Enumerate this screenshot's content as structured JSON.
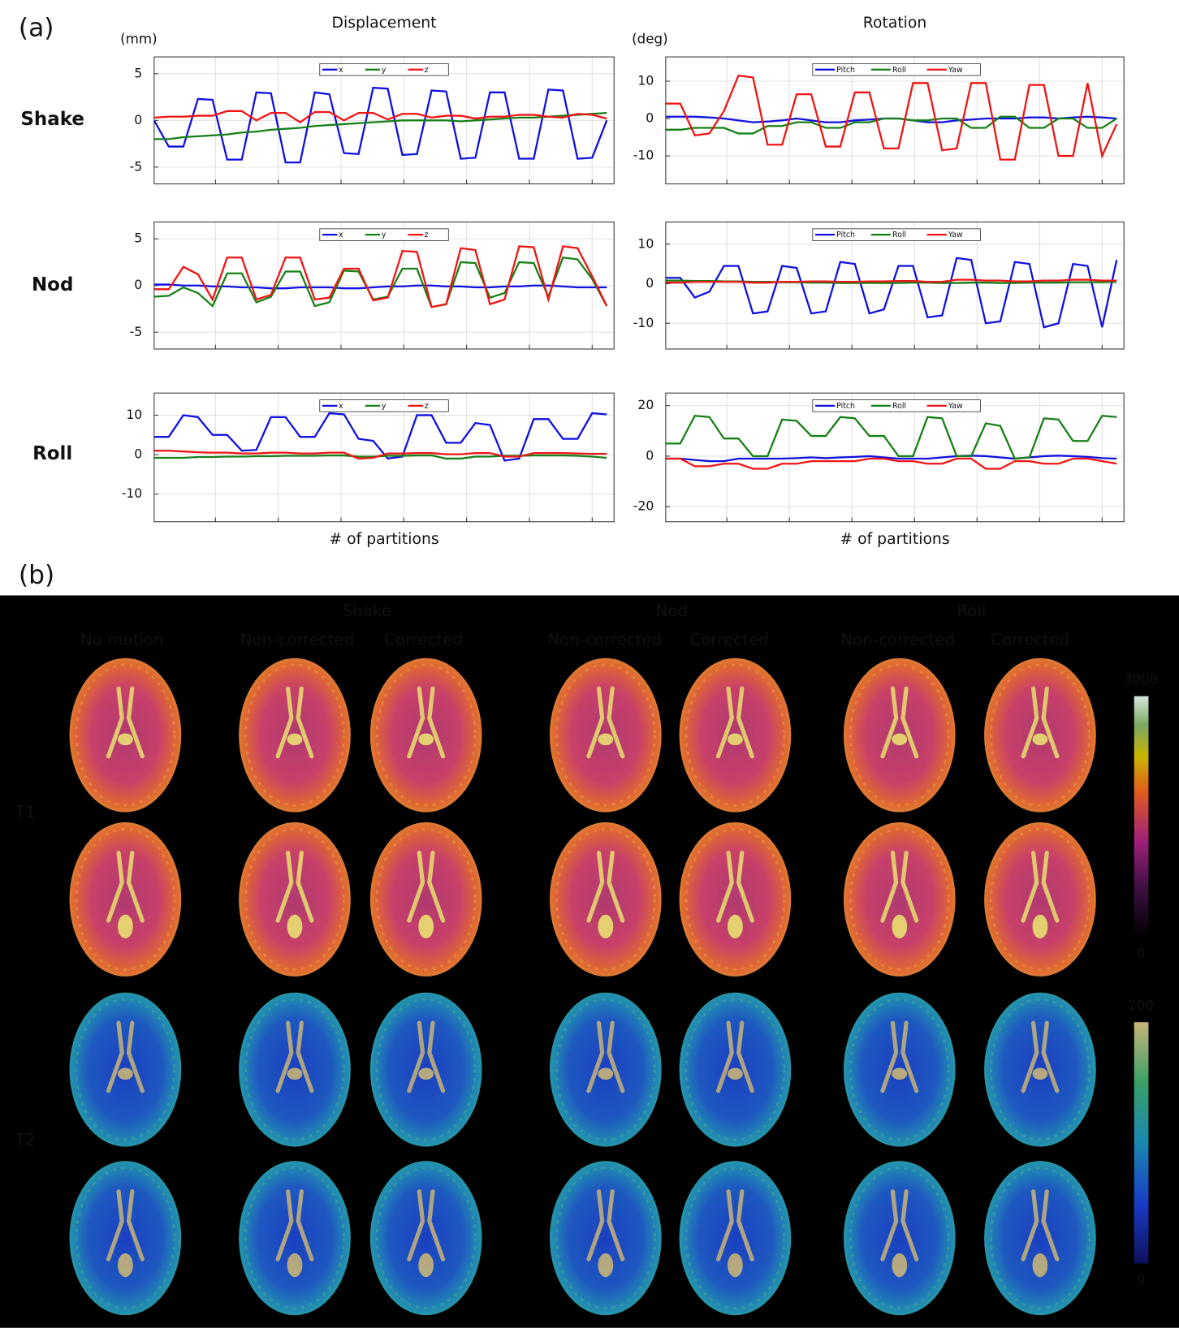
{
  "figure": {
    "panel_a_label": "(a)",
    "row_labels": [
      "Shake",
      "Nod",
      "Roll"
    ],
    "panel_b_label": "(b)",
    "panel_b": {
      "groups": [
        "Shake",
        "Nod",
        "Roll"
      ],
      "columns": [
        "No motion",
        "Non-corrected",
        "Corrected",
        "Non-corrected",
        "Corrected",
        "Non-corrected",
        "Corrected"
      ],
      "rows": [
        "T1",
        "T2"
      ],
      "colorbars": [
        {
          "max": 3000,
          "min": 0
        },
        {
          "max": 200,
          "min": 0
        }
      ]
    }
  },
  "chart_data": [
    {
      "type": "line",
      "title": "Displacement",
      "ylabel": "(mm)",
      "grid": true,
      "legend": "upper center",
      "x": [
        0,
        1,
        2,
        3,
        4,
        5,
        6,
        7,
        8,
        9,
        10,
        11,
        12,
        13,
        14,
        15,
        16,
        17,
        18,
        19,
        20,
        21,
        22,
        23,
        24,
        25,
        26,
        27,
        28,
        29,
        30,
        31
      ],
      "xlim": [
        0,
        31.5
      ],
      "xticks": [
        4.2,
        8.5,
        12.8,
        17.1,
        21.4,
        25.7,
        30
      ],
      "ylim": [
        -6.8,
        6.8
      ],
      "yticks": [
        -5,
        0,
        5
      ],
      "series": [
        {
          "name": "x",
          "color": "#1010e0",
          "values": [
            0,
            -2.8,
            -2.8,
            2.3,
            2.2,
            -4.2,
            -4.2,
            3,
            2.9,
            -4.5,
            -4.5,
            3,
            2.8,
            -3.5,
            -3.6,
            3.5,
            3.4,
            -3.7,
            -3.6,
            3.2,
            3.1,
            -4.1,
            -4,
            3,
            3,
            -4.1,
            -4.1,
            3.3,
            3.2,
            -4.1,
            -4,
            0
          ]
        },
        {
          "name": "y",
          "color": "#168016",
          "values": [
            -2,
            -2,
            -1.8,
            -1.7,
            -1.6,
            -1.5,
            -1.3,
            -1.2,
            -1,
            -0.9,
            -0.8,
            -0.6,
            -0.5,
            -0.4,
            -0.3,
            -0.2,
            -0.1,
            0,
            0,
            0,
            0,
            -0.1,
            0,
            0.1,
            0.2,
            0.3,
            0.3,
            0.4,
            0.5,
            0.6,
            0.7,
            0.8
          ]
        },
        {
          "name": "z",
          "color": "#f01414",
          "values": [
            0.3,
            0.4,
            0.4,
            0.5,
            0.5,
            1,
            1,
            0,
            0.8,
            0.8,
            -0.2,
            0.9,
            0.9,
            0,
            0.8,
            0.8,
            0.1,
            0.7,
            0.7,
            0.3,
            0.5,
            0.5,
            0.2,
            0.4,
            0.4,
            0.6,
            0.6,
            0.4,
            0.3,
            0.7,
            0.6,
            0.2
          ]
        }
      ]
    },
    {
      "type": "line",
      "title": "Rotation",
      "ylabel": "(deg)",
      "grid": true,
      "legend": "upper center",
      "x": [
        0,
        1,
        2,
        3,
        4,
        5,
        6,
        7,
        8,
        9,
        10,
        11,
        12,
        13,
        14,
        15,
        16,
        17,
        18,
        19,
        20,
        21,
        22,
        23,
        24,
        25,
        26,
        27,
        28,
        29,
        30,
        31
      ],
      "xlim": [
        0,
        31.5
      ],
      "xticks": [
        4.2,
        8.5,
        12.8,
        17.1,
        21.4,
        25.7,
        30
      ],
      "ylim": [
        -17.5,
        16.5
      ],
      "yticks": [
        -10,
        0,
        10
      ],
      "series": [
        {
          "name": "Pitch",
          "color": "#1010e0",
          "values": [
            0.5,
            0.5,
            0.5,
            0.3,
            0,
            -0.5,
            -1,
            -0.8,
            -0.5,
            0,
            -0.5,
            -1,
            -1,
            -0.5,
            -0.3,
            0,
            0,
            -0.5,
            -1,
            -1,
            -0.5,
            -0.3,
            0,
            0,
            0,
            0.3,
            0.3,
            0,
            0.3,
            0.5,
            0.3,
            0
          ]
        },
        {
          "name": "Roll",
          "color": "#168016",
          "values": [
            -3,
            -3,
            -2.5,
            -2.5,
            -2.5,
            -4,
            -4,
            -2,
            -2,
            -1,
            -1,
            -2.5,
            -2.5,
            -1,
            -1,
            0,
            0,
            -0.5,
            -0.5,
            0,
            0,
            -2.5,
            -2.5,
            0.5,
            0.5,
            -2.5,
            -2.5,
            0,
            0,
            -2.5,
            -2.5,
            0
          ]
        },
        {
          "name": "Yaw",
          "color": "#f01414",
          "values": [
            4,
            4,
            -4.5,
            -4,
            2,
            11.5,
            11,
            -7,
            -7,
            6.5,
            6.5,
            -7.5,
            -7.5,
            7,
            7,
            -8,
            -8,
            9.5,
            9.5,
            -8.5,
            -8,
            9.5,
            9.5,
            -11,
            -11,
            9,
            9,
            -10,
            -10,
            9.5,
            -10,
            -1.5
          ]
        }
      ]
    },
    {
      "type": "line",
      "grid": true,
      "legend": "upper center",
      "x": [
        0,
        1,
        2,
        3,
        4,
        5,
        6,
        7,
        8,
        9,
        10,
        11,
        12,
        13,
        14,
        15,
        16,
        17,
        18,
        19,
        20,
        21,
        22,
        23,
        24,
        25,
        26,
        27,
        28,
        29,
        30,
        31
      ],
      "xlim": [
        0,
        31.5
      ],
      "xticks": [
        4.2,
        8.5,
        12.8,
        17.1,
        21.4,
        25.7,
        30
      ],
      "ylim": [
        -6.8,
        6.8
      ],
      "yticks": [
        -5,
        0,
        5
      ],
      "series": [
        {
          "name": "x",
          "color": "#1010e0",
          "values": [
            0.1,
            0.1,
            0,
            0,
            -0.1,
            -0.1,
            -0.2,
            -0.2,
            -0.3,
            -0.3,
            -0.2,
            -0.2,
            -0.2,
            -0.3,
            -0.3,
            -0.2,
            -0.1,
            -0.1,
            0,
            0,
            -0.1,
            -0.1,
            -0.2,
            -0.2,
            -0.1,
            -0.1,
            0,
            0,
            -0.1,
            -0.2,
            -0.2,
            -0.2
          ]
        },
        {
          "name": "y",
          "color": "#168016",
          "values": [
            -1.2,
            -1.1,
            -0.2,
            -0.8,
            -2.2,
            1.3,
            1.3,
            -1.8,
            -1.2,
            1.5,
            1.5,
            -2.2,
            -1.8,
            1.6,
            1.5,
            -1.5,
            -1.2,
            1.8,
            1.8,
            -2.3,
            -2,
            2.5,
            2.4,
            -1.3,
            -0.8,
            2.5,
            2.4,
            -1.2,
            3,
            2.8,
            0.7,
            -2.2
          ]
        },
        {
          "name": "z",
          "color": "#f01414",
          "values": [
            -0.4,
            -0.4,
            2,
            1.2,
            -1.5,
            3,
            3,
            -1.5,
            -1,
            3,
            3,
            -1.5,
            -1.3,
            1.8,
            1.8,
            -1.6,
            -1.3,
            3.7,
            3.6,
            -2.3,
            -2,
            4,
            3.8,
            -2,
            -1.5,
            4.2,
            4.1,
            -1.5,
            4.2,
            4,
            1,
            -2.2
          ]
        }
      ]
    },
    {
      "type": "line",
      "grid": true,
      "legend": "upper center",
      "x": [
        0,
        1,
        2,
        3,
        4,
        5,
        6,
        7,
        8,
        9,
        10,
        11,
        12,
        13,
        14,
        15,
        16,
        17,
        18,
        19,
        20,
        21,
        22,
        23,
        24,
        25,
        26,
        27,
        28,
        29,
        30,
        31
      ],
      "xlim": [
        0,
        31.5
      ],
      "xticks": [
        4.2,
        8.5,
        12.8,
        17.1,
        21.4,
        25.7,
        30
      ],
      "ylim": [
        -16.5,
        15.6
      ],
      "yticks": [
        -10,
        0,
        10
      ],
      "series": [
        {
          "name": "Pitch",
          "color": "#1010e0",
          "values": [
            1.5,
            1.5,
            -3.5,
            -2,
            4.5,
            4.5,
            -7.5,
            -7,
            4.5,
            4,
            -7.5,
            -7,
            5.5,
            5,
            -7.5,
            -6.5,
            4.5,
            4.5,
            -8.5,
            -8,
            6.5,
            6,
            -10,
            -9.5,
            5.5,
            5,
            -11,
            -10,
            5,
            4.5,
            -11,
            6
          ]
        },
        {
          "name": "Roll",
          "color": "#168016",
          "values": [
            0.8,
            0.8,
            0.7,
            0.7,
            0.6,
            0.6,
            0.5,
            0.5,
            0.4,
            0.4,
            0.3,
            0.3,
            0.2,
            0.2,
            0.2,
            0.2,
            0.2,
            0.3,
            0.3,
            0.2,
            0.2,
            0.3,
            0.3,
            0.2,
            0.2,
            0.3,
            0.3,
            0.3,
            0.4,
            0.4,
            0.4,
            0.5
          ]
        },
        {
          "name": "Yaw",
          "color": "#f01414",
          "values": [
            0.3,
            0.3,
            0.5,
            0.5,
            0.5,
            0.5,
            0.3,
            0.3,
            0.5,
            0.5,
            0.6,
            0.6,
            0.5,
            0.5,
            0.6,
            0.6,
            0.7,
            0.7,
            0.5,
            0.5,
            1,
            1,
            0.8,
            0.8,
            0.6,
            0.6,
            0.8,
            0.8,
            1,
            1,
            0.8,
            0.8
          ]
        }
      ]
    },
    {
      "type": "line",
      "xlabel": "# of partitions",
      "grid": true,
      "legend": "upper center",
      "x": [
        0,
        1,
        2,
        3,
        4,
        5,
        6,
        7,
        8,
        9,
        10,
        11,
        12,
        13,
        14,
        15,
        16,
        17,
        18,
        19,
        20,
        21,
        22,
        23,
        24,
        25,
        26,
        27,
        28,
        29,
        30,
        31
      ],
      "xlim": [
        0,
        31.5
      ],
      "xticks": [
        4.2,
        8.5,
        12.8,
        17.1,
        21.4,
        25.7,
        30
      ],
      "ylim": [
        -17,
        15.6
      ],
      "yticks": [
        -10,
        0,
        10
      ],
      "series": [
        {
          "name": "x",
          "color": "#1010e0",
          "values": [
            4.5,
            4.5,
            10,
            9.5,
            5,
            5,
            1,
            1.2,
            9.5,
            9.5,
            4.5,
            4.5,
            10.5,
            10.2,
            4,
            3.5,
            -1,
            -0.5,
            10,
            10,
            3,
            3,
            8,
            7.5,
            -1.5,
            -1,
            9,
            9,
            4,
            4,
            10.5,
            10.2
          ]
        },
        {
          "name": "y",
          "color": "#168016",
          "values": [
            -0.8,
            -0.8,
            -0.8,
            -0.6,
            -0.6,
            -0.5,
            -0.5,
            -0.4,
            -0.4,
            -0.3,
            -0.3,
            -0.3,
            -0.2,
            -0.2,
            -0.5,
            -0.5,
            -0.3,
            -0.3,
            -0.2,
            -0.2,
            -1,
            -1,
            -0.5,
            -0.5,
            -0.3,
            -0.3,
            -0.2,
            -0.2,
            -0.2,
            -0.3,
            -0.5,
            -0.8
          ]
        },
        {
          "name": "z",
          "color": "#f01414",
          "values": [
            1,
            1,
            0.8,
            0.6,
            0.5,
            0.5,
            0.3,
            0.3,
            0.5,
            0.5,
            0.3,
            0.3,
            0.5,
            0.5,
            -1,
            -0.8,
            0.3,
            0.3,
            0.4,
            0.4,
            0.1,
            0.1,
            0.4,
            0.4,
            -0.5,
            -0.5,
            0.4,
            0.4,
            0.4,
            0.3,
            0.2,
            0.2
          ]
        }
      ]
    },
    {
      "type": "line",
      "xlabel": "# of partitions",
      "grid": true,
      "legend": "upper center",
      "x": [
        0,
        1,
        2,
        3,
        4,
        5,
        6,
        7,
        8,
        9,
        10,
        11,
        12,
        13,
        14,
        15,
        16,
        17,
        18,
        19,
        20,
        21,
        22,
        23,
        24,
        25,
        26,
        27,
        28,
        29,
        30,
        31
      ],
      "xlim": [
        0,
        31.5
      ],
      "xticks": [
        4.2,
        8.5,
        12.8,
        17.1,
        21.4,
        25.7,
        30
      ],
      "ylim": [
        -26,
        25
      ],
      "yticks": [
        -20,
        0,
        20
      ],
      "series": [
        {
          "name": "Pitch",
          "color": "#1010e0",
          "values": [
            -1,
            -1,
            -1.5,
            -2,
            -2,
            -1,
            -1,
            -1,
            -1,
            -0.8,
            -0.5,
            -0.8,
            -0.5,
            -0.3,
            0,
            -0.5,
            -1,
            -1,
            -1,
            -0.5,
            0,
            0.2,
            0,
            -0.5,
            -1,
            -0.5,
            0,
            0.2,
            0,
            -0.3,
            -0.8,
            -1
          ]
        },
        {
          "name": "Roll",
          "color": "#168016",
          "values": [
            5,
            5,
            16,
            15.5,
            7,
            7,
            0,
            0,
            14.5,
            14,
            8,
            8,
            15.5,
            15,
            8,
            8,
            0,
            0,
            15.5,
            15,
            0,
            0,
            13,
            12,
            -1,
            -0.5,
            15,
            14.5,
            6,
            6,
            16,
            15.5
          ]
        },
        {
          "name": "Yaw",
          "color": "#f01414",
          "values": [
            -1,
            -1,
            -4,
            -4,
            -3,
            -3,
            -5,
            -5,
            -3,
            -3,
            -2,
            -2,
            -2,
            -2,
            -1,
            -1,
            -2,
            -2,
            -3,
            -3,
            -1,
            -1,
            -5,
            -5,
            -2,
            -2,
            -3,
            -3,
            -1,
            -1,
            -2,
            -3
          ]
        }
      ]
    }
  ]
}
